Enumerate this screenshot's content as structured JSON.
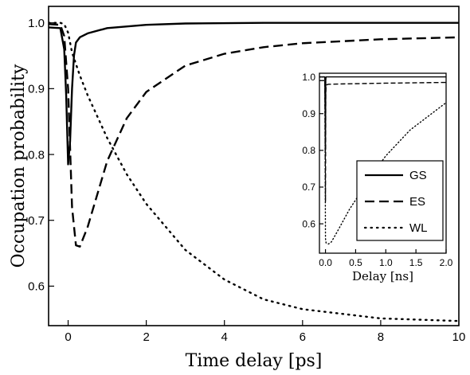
{
  "chart_data": [
    {
      "type": "line",
      "xlabel": "Time delay [ps]",
      "ylabel": "Occupation probability",
      "xlim": [
        -0.5,
        10
      ],
      "ylim": [
        0.54,
        1.025
      ],
      "xticks": [
        "0",
        "2",
        "4",
        "6",
        "8",
        "10"
      ],
      "yticks": [
        "0.6",
        "0.7",
        "0.8",
        "0.9",
        "1.0"
      ],
      "grid": false,
      "series": [
        {
          "name": "GS",
          "style": "solid",
          "color": "#000000",
          "x": [
            -0.5,
            -0.2,
            -0.1,
            -0.05,
            0.0,
            0.05,
            0.1,
            0.15,
            0.2,
            0.3,
            0.5,
            1.0,
            2.0,
            3.0,
            5.0,
            10.0
          ],
          "y": [
            0.993,
            0.992,
            0.96,
            0.89,
            0.785,
            0.82,
            0.9,
            0.95,
            0.97,
            0.978,
            0.984,
            0.992,
            0.997,
            0.999,
            1.0,
            1.0
          ]
        },
        {
          "name": "ES",
          "style": "dashed",
          "color": "#000000",
          "x": [
            -0.5,
            -0.2,
            -0.1,
            0.0,
            0.1,
            0.2,
            0.3,
            0.5,
            1.0,
            1.5,
            2.0,
            3.0,
            4.0,
            5.0,
            6.0,
            8.0,
            10.0
          ],
          "y": [
            0.998,
            0.997,
            0.98,
            0.9,
            0.72,
            0.662,
            0.66,
            0.69,
            0.79,
            0.855,
            0.895,
            0.935,
            0.953,
            0.963,
            0.969,
            0.975,
            0.978
          ]
        },
        {
          "name": "WL",
          "style": "dotted",
          "color": "#000000",
          "x": [
            -0.5,
            -0.2,
            -0.1,
            0.0,
            0.1,
            0.3,
            0.5,
            1.0,
            1.5,
            2.0,
            3.0,
            4.0,
            5.0,
            6.0,
            8.0,
            10.0
          ],
          "y": [
            1.0,
            1.0,
            0.998,
            0.985,
            0.955,
            0.92,
            0.89,
            0.825,
            0.77,
            0.725,
            0.655,
            0.61,
            0.58,
            0.565,
            0.551,
            0.547
          ]
        }
      ]
    },
    {
      "type": "line",
      "inset": true,
      "xlabel": "Delay [ns]",
      "ylabel": "",
      "xlim": [
        -0.1,
        2.0
      ],
      "ylim": [
        0.52,
        1.01
      ],
      "xticks": [
        "0.0",
        "0.5",
        "1.0",
        "1.5",
        "2.0"
      ],
      "yticks": [
        "0.6",
        "0.7",
        "0.8",
        "0.9",
        "1.0"
      ],
      "legend": {
        "position": "right",
        "entries": [
          "GS",
          "ES",
          "WL"
        ]
      },
      "series": [
        {
          "name": "GS",
          "style": "solid",
          "color": "#000000",
          "x": [
            -0.1,
            -0.01,
            0.0,
            0.005,
            0.01,
            0.05,
            2.0
          ],
          "y": [
            1.0,
            1.0,
            0.8,
            0.99,
            1.0,
            1.0,
            1.0
          ]
        },
        {
          "name": "ES",
          "style": "dashed",
          "color": "#000000",
          "x": [
            -0.1,
            -0.01,
            0.0,
            0.005,
            0.01,
            0.05,
            0.3,
            1.0,
            2.0
          ],
          "y": [
            0.99,
            0.99,
            0.66,
            0.95,
            0.978,
            0.98,
            0.981,
            0.983,
            0.985
          ]
        },
        {
          "name": "WL",
          "style": "dotted",
          "color": "#000000",
          "x": [
            -0.1,
            -0.01,
            0.0,
            0.01,
            0.05,
            0.1,
            0.2,
            0.4,
            0.6,
            0.8,
            1.0,
            1.2,
            1.4,
            1.6,
            1.8,
            2.0
          ],
          "y": [
            1.0,
            1.0,
            0.56,
            0.548,
            0.545,
            0.551,
            0.58,
            0.64,
            0.69,
            0.74,
            0.785,
            0.82,
            0.855,
            0.88,
            0.905,
            0.93
          ]
        }
      ]
    }
  ]
}
